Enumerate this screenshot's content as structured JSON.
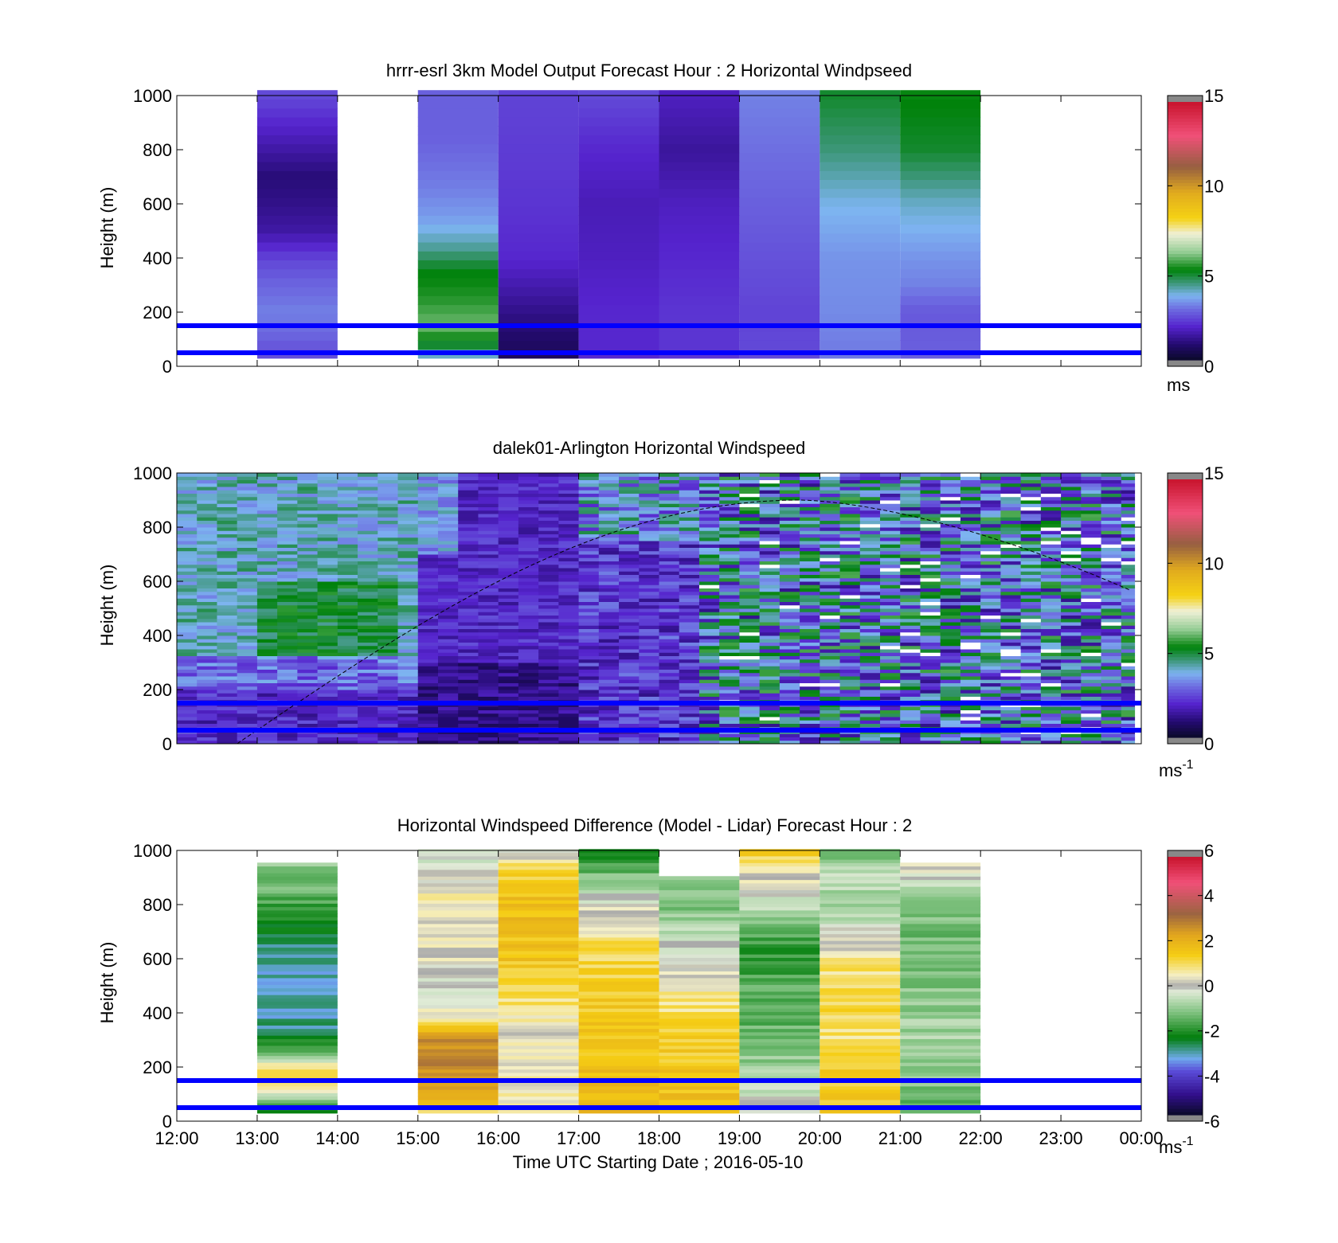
{
  "figure": {
    "xlabel": "Time UTC  Starting Date ; 2016-05-10",
    "time_ticks": [
      "12:00",
      "13:00",
      "14:00",
      "15:00",
      "16:00",
      "17:00",
      "18:00",
      "19:00",
      "20:00",
      "21:00",
      "22:00",
      "23:00",
      "00:00"
    ],
    "height_ticks": [
      "0",
      "200",
      "400",
      "600",
      "800",
      "1000"
    ],
    "ylabel": "Height (m)",
    "reference_lines_m": [
      50,
      150
    ],
    "reference_line_color": "#0000ff"
  },
  "chart_data": [
    {
      "type": "heatmap",
      "title": "hrrr-esrl 3km Model Output   Forecast Hour : 2 Horizontal Windpseed",
      "ylabel": "Height (m)",
      "ylim": [
        0,
        1000
      ],
      "xlim": [
        "12:00",
        "00:00"
      ],
      "colorbar": {
        "ticks": [
          "0",
          "5",
          "10",
          "15"
        ],
        "range": [
          0,
          15
        ],
        "unit": "ms"
      },
      "hourly_columns": [
        {
          "start": "13:00",
          "profile": [
            [
              30,
              2.5
            ],
            [
              60,
              2.6
            ],
            [
              100,
              2.8
            ],
            [
              200,
              3.2
            ],
            [
              260,
              3.0
            ],
            [
              320,
              2.8
            ],
            [
              400,
              2.4
            ],
            [
              500,
              1.5
            ],
            [
              600,
              1.2
            ],
            [
              700,
              1.0
            ],
            [
              800,
              1.5
            ],
            [
              900,
              2.0
            ],
            [
              1000,
              2.5
            ]
          ]
        },
        {
          "start": "15:00",
          "profile": [
            [
              30,
              3.5
            ],
            [
              80,
              5.0
            ],
            [
              150,
              6.0
            ],
            [
              250,
              5.5
            ],
            [
              350,
              5.2
            ],
            [
              450,
              4.2
            ],
            [
              550,
              3.5
            ],
            [
              650,
              3.2
            ],
            [
              750,
              3.0
            ],
            [
              850,
              2.8
            ],
            [
              1000,
              2.8
            ]
          ]
        },
        {
          "start": "16:00",
          "profile": [
            [
              30,
              0.6
            ],
            [
              100,
              0.8
            ],
            [
              200,
              1.2
            ],
            [
              300,
              1.6
            ],
            [
              400,
              2.0
            ],
            [
              600,
              2.2
            ],
            [
              800,
              2.3
            ],
            [
              1000,
              2.4
            ]
          ]
        },
        {
          "start": "17:00",
          "profile": [
            [
              30,
              2.0
            ],
            [
              200,
              2.0
            ],
            [
              400,
              1.8
            ],
            [
              600,
              1.7
            ],
            [
              800,
              2.0
            ],
            [
              1000,
              2.5
            ]
          ]
        },
        {
          "start": "18:00",
          "profile": [
            [
              30,
              2.2
            ],
            [
              200,
              2.2
            ],
            [
              400,
              2.0
            ],
            [
              600,
              1.8
            ],
            [
              800,
              1.4
            ],
            [
              1000,
              1.8
            ]
          ]
        },
        {
          "start": "19:00",
          "profile": [
            [
              30,
              2.5
            ],
            [
              200,
              2.4
            ],
            [
              400,
              2.6
            ],
            [
              600,
              2.8
            ],
            [
              800,
              3.0
            ],
            [
              1000,
              3.2
            ]
          ]
        },
        {
          "start": "20:00",
          "profile": [
            [
              30,
              3.1
            ],
            [
              200,
              3.3
            ],
            [
              400,
              3.4
            ],
            [
              600,
              3.8
            ],
            [
              800,
              4.5
            ],
            [
              1000,
              5.0
            ]
          ]
        },
        {
          "start": "21:00",
          "profile": [
            [
              30,
              2.8
            ],
            [
              200,
              2.7
            ],
            [
              300,
              3.2
            ],
            [
              400,
              3.4
            ],
            [
              600,
              4.0
            ],
            [
              800,
              5.0
            ],
            [
              1000,
              5.3
            ]
          ]
        }
      ]
    },
    {
      "type": "heatmap",
      "title": "dalek01-Arlington  Horizontal Windspeed",
      "ylabel": "Height (m)",
      "ylim": [
        0,
        1000
      ],
      "xlim": [
        "12:00",
        "00:00"
      ],
      "colorbar": {
        "ticks": [
          "0",
          "5",
          "10",
          "15"
        ],
        "range": [
          0,
          15
        ],
        "unit": "ms",
        "unit_sup": "-1"
      },
      "continuous_time_range": [
        "12:00",
        "23:55"
      ],
      "arc_curve": "dashed arc rising from 0 m at about 12:45 to about 900 m at about 19:45 and falling to about 560 m near 23:55"
    },
    {
      "type": "heatmap",
      "title": "Horizontal Windspeed Difference (Model - Lidar) Forecast Hour : 2",
      "ylabel": "Height (m)",
      "ylim": [
        0,
        1000
      ],
      "xlim": [
        "12:00",
        "00:00"
      ],
      "colorbar": {
        "ticks": [
          "-6",
          "-4",
          "-2",
          "0",
          "2",
          "4",
          "6"
        ],
        "range": [
          -6,
          6
        ],
        "unit": "ms",
        "unit_sup": "-1"
      },
      "hourly_columns": [
        {
          "start": "13:00",
          "profile": [
            [
              30,
              -2.2
            ],
            [
              80,
              -1.0
            ],
            [
              150,
              1.5
            ],
            [
              210,
              0.8
            ],
            [
              240,
              -1.5
            ],
            [
              350,
              -3.0
            ],
            [
              500,
              -3.3
            ],
            [
              650,
              -3.0
            ],
            [
              800,
              -1.8
            ],
            [
              950,
              -1.0
            ]
          ]
        },
        {
          "start": "15:00",
          "profile": [
            [
              30,
              1.0
            ],
            [
              100,
              2.0
            ],
            [
              200,
              3.0
            ],
            [
              300,
              2.6
            ],
            [
              350,
              1.5
            ],
            [
              450,
              -0.5
            ],
            [
              600,
              0.2
            ],
            [
              700,
              0.3
            ],
            [
              850,
              0.5
            ],
            [
              1000,
              -0.7
            ]
          ]
        },
        {
          "start": "16:00",
          "profile": [
            [
              30,
              0.4
            ],
            [
              150,
              0.6
            ],
            [
              300,
              0.3
            ],
            [
              450,
              0.9
            ],
            [
              600,
              1.6
            ],
            [
              800,
              1.8
            ],
            [
              900,
              1.4
            ],
            [
              1000,
              0.2
            ]
          ]
        },
        {
          "start": "17:00",
          "profile": [
            [
              30,
              2.2
            ],
            [
              150,
              1.8
            ],
            [
              300,
              1.6
            ],
            [
              500,
              1.4
            ],
            [
              650,
              1.0
            ],
            [
              750,
              0.5
            ],
            [
              850,
              -0.5
            ],
            [
              950,
              -1.8
            ],
            [
              1000,
              -2.0
            ]
          ]
        },
        {
          "start": "18:00",
          "profile": [
            [
              30,
              1.8
            ],
            [
              200,
              1.6
            ],
            [
              350,
              1.2
            ],
            [
              500,
              0.5
            ],
            [
              650,
              -0.3
            ],
            [
              800,
              -1.2
            ],
            [
              900,
              -1.0
            ]
          ]
        },
        {
          "start": "19:00",
          "profile": [
            [
              30,
              0.2
            ],
            [
              150,
              -0.6
            ],
            [
              300,
              -1.4
            ],
            [
              500,
              -1.6
            ],
            [
              650,
              -2.0
            ],
            [
              800,
              -0.6
            ],
            [
              900,
              0.3
            ],
            [
              1000,
              1.4
            ]
          ]
        },
        {
          "start": "20:00",
          "profile": [
            [
              30,
              1.5
            ],
            [
              150,
              1.4
            ],
            [
              300,
              0.9
            ],
            [
              450,
              1.2
            ],
            [
              600,
              0.8
            ],
            [
              800,
              -1.0
            ],
            [
              900,
              -0.6
            ],
            [
              1000,
              -1.4
            ]
          ]
        },
        {
          "start": "21:00",
          "profile": [
            [
              30,
              -1.5
            ],
            [
              150,
              -1.2
            ],
            [
              300,
              -0.8
            ],
            [
              500,
              -1.2
            ],
            [
              700,
              -1.4
            ],
            [
              850,
              -0.8
            ],
            [
              950,
              0.4
            ]
          ]
        }
      ]
    }
  ]
}
